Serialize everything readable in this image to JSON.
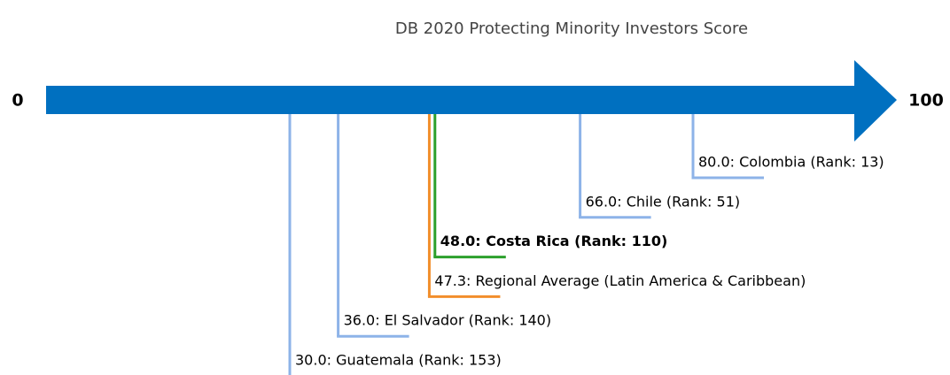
{
  "chart_data": {
    "type": "number-line",
    "title": "DB 2020 Protecting Minority Investors Score",
    "xlim": [
      0,
      100
    ],
    "xticks": [
      0,
      100
    ],
    "axis_color": "#0070c0",
    "values": [
      30,
      36,
      47.3,
      48,
      66,
      80
    ],
    "labels": [
      "30.0: Guatemala (Rank: 153)",
      "36.0: El Salvador (Rank: 140)",
      "47.3: Regional Average (Latin America & Caribbean)",
      "48.0: Costa Rica (Rank: 110)",
      "66.0: Chile (Rank: 51)",
      "80.0: Colombia (Rank: 13)"
    ],
    "colors": [
      "#8db3e8",
      "#8db3e8",
      "#f28e2b",
      "#2ca02c",
      "#8db3e8",
      "#8db3e8"
    ],
    "bold": [
      false,
      false,
      false,
      true,
      false,
      false
    ]
  }
}
